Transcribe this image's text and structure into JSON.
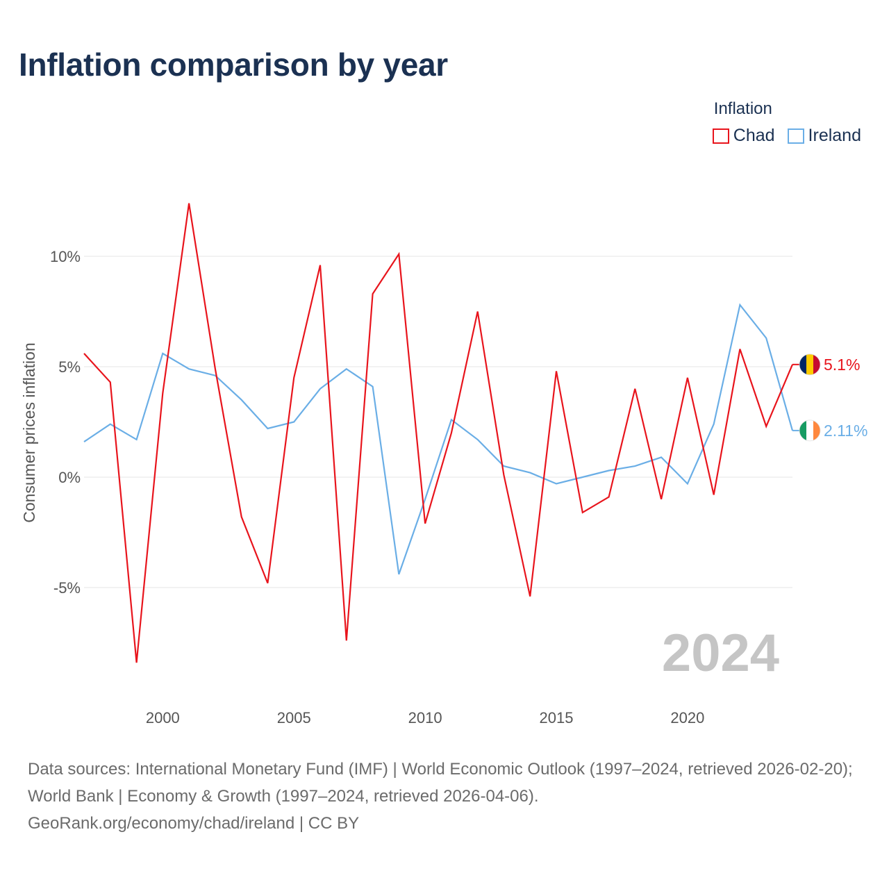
{
  "title": "Inflation comparison by year",
  "legend": {
    "title": "Inflation",
    "items": [
      {
        "name": "Chad",
        "color": "#e8141c"
      },
      {
        "name": "Ireland",
        "color": "#6aaee6"
      }
    ]
  },
  "watermark_year": "2024",
  "footer": {
    "sources": "Data sources: International Monetary Fund (IMF) | World Economic Outlook (1997–2024, retrieved 2026-02-20); World Bank | Economy & Growth (1997–2024, retrieved 2026-04-06).",
    "credit": "GeoRank.org/economy/chad/ireland | CC BY"
  },
  "chart_data": {
    "type": "line",
    "title": "Inflation comparison by year",
    "xlabel": "",
    "ylabel": "Consumer prices inflation",
    "xlim": [
      1997,
      2024
    ],
    "ylim": [
      -10,
      15
    ],
    "x_ticks": [
      2000,
      2005,
      2010,
      2015,
      2020
    ],
    "x_tick_labels": [
      "2000",
      "2005",
      "2010",
      "2015",
      "2020"
    ],
    "y_ticks": [
      -5,
      0,
      5,
      10
    ],
    "y_tick_labels": [
      "-5%",
      "0%",
      "5%",
      "10%"
    ],
    "grid": true,
    "legend_position": "top-right",
    "x": [
      1997,
      1998,
      1999,
      2000,
      2001,
      2002,
      2003,
      2004,
      2005,
      2006,
      2007,
      2008,
      2009,
      2010,
      2011,
      2012,
      2013,
      2014,
      2015,
      2016,
      2017,
      2018,
      2019,
      2020,
      2021,
      2022,
      2023,
      2024
    ],
    "series": [
      {
        "name": "Chad",
        "color": "#e8141c",
        "end_label": "5.1%",
        "flag": "chad",
        "values": [
          5.6,
          4.3,
          -8.4,
          3.8,
          12.4,
          4.9,
          -1.8,
          -4.8,
          4.5,
          9.6,
          -7.4,
          8.3,
          10.1,
          -2.1,
          2.0,
          7.5,
          0.1,
          -5.4,
          4.8,
          -1.6,
          -0.9,
          4.0,
          -1.0,
          4.5,
          -0.8,
          5.8,
          2.3,
          5.1
        ]
      },
      {
        "name": "Ireland",
        "color": "#6aaee6",
        "end_label": "2.11%",
        "flag": "ireland",
        "values": [
          1.6,
          2.4,
          1.7,
          5.6,
          4.9,
          4.6,
          3.5,
          2.2,
          2.5,
          4.0,
          4.9,
          4.1,
          -4.4,
          -1.0,
          2.6,
          1.7,
          0.5,
          0.2,
          -0.3,
          0.0,
          0.3,
          0.5,
          0.9,
          -0.3,
          2.4,
          7.8,
          6.3,
          2.11
        ]
      }
    ]
  }
}
